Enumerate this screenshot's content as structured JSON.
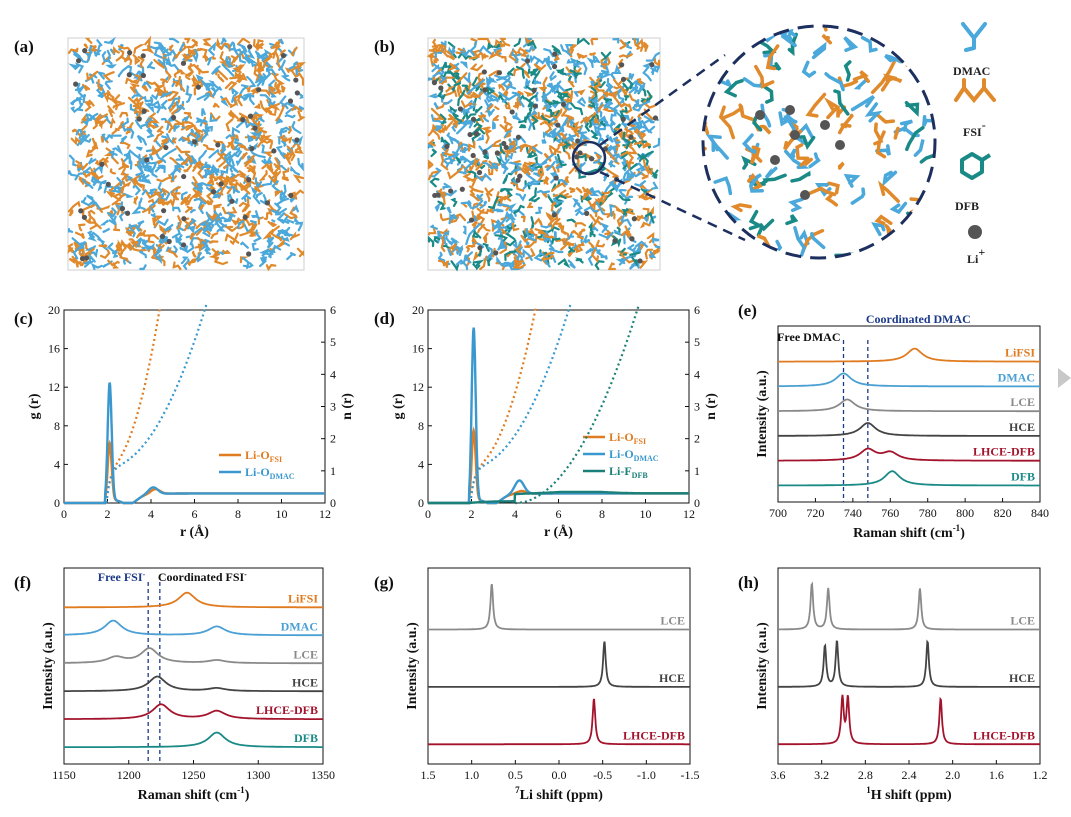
{
  "figure": {
    "panels": [
      "(a)",
      "(b)",
      "(c)",
      "(d)",
      "(e)",
      "(f)",
      "(g)",
      "(h)"
    ],
    "legend_species": [
      {
        "name": "DMAC",
        "color": "#4aa8db"
      },
      {
        "name": "FSI",
        "sup": "-",
        "color": "#e08a2c"
      },
      {
        "name": "DFB",
        "color": "#1a8a86"
      },
      {
        "name": "Li",
        "sup": "+",
        "color": "#555555"
      }
    ]
  },
  "chart_data": [
    {
      "id": "c",
      "type": "line",
      "xlabel": "r (Å)",
      "ylabel": "g (r)",
      "y2label": "n (r)",
      "xlim": [
        0,
        12
      ],
      "ylim": [
        0,
        20
      ],
      "y2lim": [
        0,
        6
      ],
      "xticks": [
        "0",
        "2",
        "4",
        "6",
        "8",
        "10",
        "12"
      ],
      "yticks": [
        "0",
        "4",
        "8",
        "12",
        "16",
        "20"
      ],
      "y2ticks": [
        "0",
        "1",
        "2",
        "3",
        "4",
        "5",
        "6"
      ],
      "series": [
        {
          "name": "Li-O",
          "sub": "FSI",
          "color": "#e07b20",
          "peaks": [
            [
              2.1,
              6.6
            ],
            [
              4.2,
              1.4
            ]
          ]
        },
        {
          "name": "Li-O",
          "sub": "DMAC",
          "color": "#3a98cf",
          "peaks": [
            [
              2.1,
              12.9
            ],
            [
              4.1,
              1.6
            ]
          ]
        }
      ]
    },
    {
      "id": "d",
      "type": "line",
      "xlabel": "r (Å)",
      "ylabel": "g (r)",
      "y2label": "n (r)",
      "xlim": [
        0,
        12
      ],
      "ylim": [
        0,
        20
      ],
      "y2lim": [
        0,
        6
      ],
      "xticks": [
        "0",
        "2",
        "4",
        "6",
        "8",
        "10",
        "12"
      ],
      "yticks": [
        "0",
        "4",
        "8",
        "12",
        "16",
        "20"
      ],
      "y2ticks": [
        "0",
        "1",
        "2",
        "3",
        "4",
        "5",
        "6"
      ],
      "series": [
        {
          "name": "Li-O",
          "sub": "FSI",
          "color": "#e07b20",
          "peaks": [
            [
              2.1,
              7.9
            ],
            [
              4.3,
              1.2
            ]
          ]
        },
        {
          "name": "Li-O",
          "sub": "DMAC",
          "color": "#3a98cf",
          "peaks": [
            [
              2.1,
              18.6
            ],
            [
              4.2,
              2.3
            ]
          ]
        },
        {
          "name": "Li-F",
          "sub": "DFB",
          "color": "#1a8079",
          "peaks": [
            [
              7.0,
              1.1
            ]
          ]
        }
      ]
    },
    {
      "id": "e",
      "type": "line",
      "xlabel": "Raman shift (cm",
      "xlabel_sup": "-1",
      "xlabel_end": ")",
      "ylabel": "Intensity (a.u.)",
      "xlim": [
        700,
        840
      ],
      "xticks": [
        "700",
        "720",
        "740",
        "760",
        "780",
        "800",
        "820",
        "840"
      ],
      "annotations": [
        {
          "text": "Free DMAC",
          "x": 735
        },
        {
          "text": "Coordinated DMAC",
          "x": 748
        }
      ],
      "series": [
        {
          "name": "LiFSI",
          "color": "#e07b20",
          "peaks": [
            [
              773,
              1.0
            ]
          ]
        },
        {
          "name": "DMAC",
          "color": "#4a9fd4",
          "peaks": [
            [
              735,
              1.0
            ]
          ]
        },
        {
          "name": "LCE",
          "color": "#8a8a8a",
          "peaks": [
            [
              737,
              0.9
            ]
          ]
        },
        {
          "name": "HCE",
          "color": "#444444",
          "peaks": [
            [
              748,
              1.0
            ]
          ]
        },
        {
          "name": "LHCE-DFB",
          "color": "#a3142c",
          "peaks": [
            [
              748,
              0.85
            ],
            [
              760,
              0.6
            ]
          ]
        },
        {
          "name": "DFB",
          "color": "#1a8a86",
          "peaks": [
            [
              761,
              1.1
            ]
          ]
        }
      ]
    },
    {
      "id": "f",
      "type": "line",
      "xlabel": "Raman shift (cm",
      "xlabel_sup": "-1",
      "xlabel_end": ")",
      "ylabel": "Intensity (a.u.)",
      "xlim": [
        1150,
        1350
      ],
      "xticks": [
        "1150",
        "1200",
        "1250",
        "1300",
        "1350"
      ],
      "annotations": [
        {
          "text": "Free FSI",
          "sup": "-",
          "x": 1215
        },
        {
          "text": "Coordinated FSI",
          "sup": "-",
          "x": 1224
        }
      ],
      "series": [
        {
          "name": "LiFSI",
          "color": "#e07b20",
          "peaks": [
            [
              1245,
              1.0
            ]
          ]
        },
        {
          "name": "DMAC",
          "color": "#4a9fd4",
          "peaks": [
            [
              1188,
              1.0
            ],
            [
              1268,
              0.6
            ]
          ]
        },
        {
          "name": "LCE",
          "color": "#8a8a8a",
          "peaks": [
            [
              1190,
              0.4
            ],
            [
              1216,
              1.0
            ],
            [
              1268,
              0.2
            ]
          ]
        },
        {
          "name": "HCE",
          "color": "#444444",
          "peaks": [
            [
              1222,
              1.0
            ],
            [
              1268,
              0.2
            ]
          ]
        },
        {
          "name": "LHCE-DFB",
          "color": "#a3142c",
          "peaks": [
            [
              1225,
              1.0
            ],
            [
              1268,
              0.55
            ]
          ]
        },
        {
          "name": "DFB",
          "color": "#1a8a86",
          "peaks": [
            [
              1268,
              1.0
            ]
          ]
        }
      ]
    },
    {
      "id": "g",
      "type": "line",
      "xlabel": "Li shift (ppm)",
      "xlabel_pre_sup": "7",
      "ylabel": "Intensity (a.u.)",
      "xlim": [
        1.5,
        -1.5
      ],
      "xticks": [
        "1.5",
        "1.0",
        "0.5",
        "0.0",
        "-0.5",
        "-1.0",
        "-1.5"
      ],
      "series": [
        {
          "name": "LCE",
          "color": "#8a8a8a",
          "peaks": [
            [
              0.77,
              1.0
            ]
          ]
        },
        {
          "name": "HCE",
          "color": "#444444",
          "peaks": [
            [
              -0.52,
              1.0
            ]
          ]
        },
        {
          "name": "LHCE-DFB",
          "color": "#a3142c",
          "peaks": [
            [
              -0.4,
              1.0
            ]
          ]
        }
      ]
    },
    {
      "id": "h",
      "type": "line",
      "xlabel": "H shift (ppm)",
      "xlabel_pre_sup": "1",
      "ylabel": "Intensity (a.u.)",
      "xlim": [
        3.6,
        1.2
      ],
      "xticks": [
        "3.6",
        "3.2",
        "2.8",
        "2.4",
        "2.0",
        "1.6",
        "1.2"
      ],
      "series": [
        {
          "name": "LCE",
          "color": "#8a8a8a",
          "peaks": [
            [
              3.29,
              1.0
            ],
            [
              3.14,
              0.9
            ],
            [
              2.3,
              0.9
            ]
          ]
        },
        {
          "name": "HCE",
          "color": "#444444",
          "peaks": [
            [
              3.17,
              0.9
            ],
            [
              3.06,
              1.0
            ],
            [
              2.23,
              1.0
            ]
          ]
        },
        {
          "name": "LHCE-DFB",
          "color": "#a3142c",
          "peaks": [
            [
              3.01,
              1.0
            ],
            [
              2.96,
              1.0
            ],
            [
              2.11,
              1.0
            ]
          ]
        }
      ]
    }
  ]
}
